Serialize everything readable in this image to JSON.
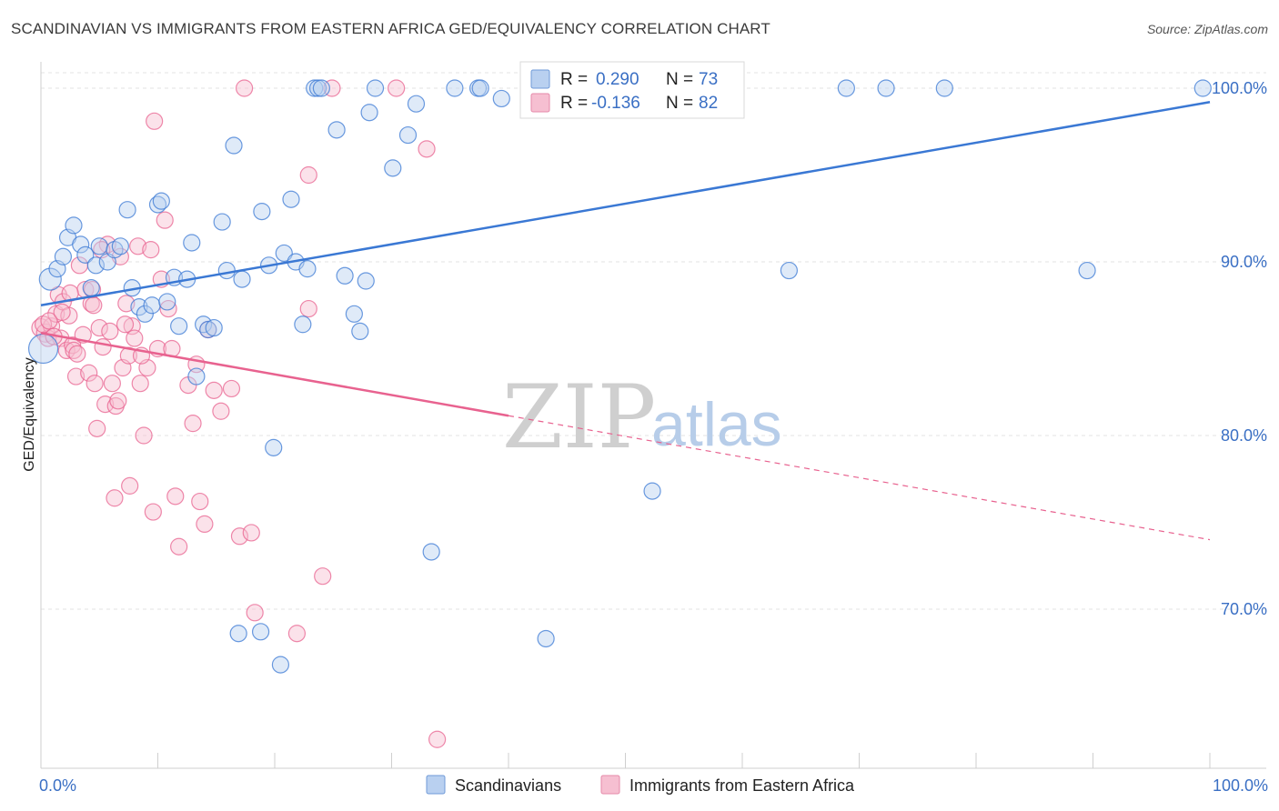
{
  "header": {
    "title": "SCANDINAVIAN VS IMMIGRANTS FROM EASTERN AFRICA GED/EQUIVALENCY CORRELATION CHART",
    "source": "Source: ZipAtlas.com"
  },
  "watermark": {
    "zip": "ZIP",
    "atlas": "atlas"
  },
  "colors": {
    "blue": "#3a78d4",
    "blue_fill": "#b9d0f0",
    "pink": "#e8628f",
    "pink_fill": "#f6bfd1",
    "tick_text": "#3a6fc4",
    "grid": "#e3e3e3"
  },
  "legend": {
    "rows": [
      {
        "r_label": "R = ",
        "r_value": "0.290",
        "n_label": "N = ",
        "n_value": "73"
      },
      {
        "r_label": "R = ",
        "r_value": "-0.136",
        "n_label": "N = ",
        "n_value": "82"
      }
    ]
  },
  "bottom_legend": {
    "items": [
      {
        "label": "Scandinavians"
      },
      {
        "label": "Immigrants from Eastern Africa"
      }
    ]
  },
  "chart_data": {
    "type": "scatter",
    "title": "SCANDINAVIAN VS IMMIGRANTS FROM EASTERN AFRICA GED/EQUIVALENCY CORRELATION CHART",
    "xlabel": "",
    "ylabel": "GED/Equivalency",
    "xlim": [
      0,
      100
    ],
    "ylim": [
      60.5,
      101.5
    ],
    "x_tick_labels": [
      "0.0%",
      "100.0%"
    ],
    "y_ticks": [
      {
        "value": 100,
        "label": "100.0%"
      },
      {
        "value": 90,
        "label": "90.0%"
      },
      {
        "value": 80,
        "label": "80.0%"
      },
      {
        "value": 70,
        "label": "70.0%"
      }
    ],
    "grid": true,
    "legend_position": "top-center",
    "series": [
      {
        "name": "Scandinavians",
        "color": "#3a78d4",
        "r": 0.29,
        "n": 73,
        "trend": {
          "x0": 0,
          "y0": 87.5,
          "x1": 100,
          "y1": 99.2,
          "dashed_from": null
        },
        "points": [
          [
            0.2,
            85.0,
            16
          ],
          [
            0.8,
            89.0,
            12
          ],
          [
            1.4,
            89.6,
            9
          ],
          [
            1.9,
            90.3,
            9
          ],
          [
            2.3,
            91.4,
            9
          ],
          [
            2.8,
            92.1,
            9
          ],
          [
            3.4,
            91.0,
            9
          ],
          [
            3.8,
            90.4,
            9
          ],
          [
            4.3,
            88.5,
            9
          ],
          [
            4.7,
            89.8,
            9
          ],
          [
            5.0,
            90.9,
            9
          ],
          [
            5.7,
            90.0,
            9
          ],
          [
            6.3,
            90.7,
            9
          ],
          [
            6.8,
            90.9,
            9
          ],
          [
            7.4,
            93.0,
            9
          ],
          [
            7.8,
            88.5,
            9
          ],
          [
            8.4,
            87.4,
            9
          ],
          [
            8.9,
            87.0,
            9
          ],
          [
            9.5,
            87.5,
            9
          ],
          [
            10.0,
            93.3,
            9
          ],
          [
            10.3,
            93.5,
            9
          ],
          [
            10.8,
            87.7,
            9
          ],
          [
            11.4,
            89.1,
            9
          ],
          [
            11.8,
            86.3,
            9
          ],
          [
            12.5,
            89.0,
            9
          ],
          [
            12.9,
            91.1,
            9
          ],
          [
            13.3,
            83.4,
            9
          ],
          [
            13.9,
            86.4,
            9
          ],
          [
            14.3,
            86.1,
            9
          ],
          [
            14.8,
            86.2,
            9
          ],
          [
            15.5,
            92.3,
            9
          ],
          [
            15.9,
            89.5,
            9
          ],
          [
            16.5,
            96.7,
            9
          ],
          [
            17.2,
            89.0,
            9
          ],
          [
            18.9,
            92.9,
            9
          ],
          [
            19.5,
            89.8,
            9
          ],
          [
            19.9,
            79.3,
            9
          ],
          [
            20.8,
            90.5,
            9
          ],
          [
            21.4,
            93.6,
            9
          ],
          [
            21.8,
            90.0,
            9
          ],
          [
            22.8,
            89.6,
            9
          ],
          [
            22.4,
            86.4,
            9
          ],
          [
            23.4,
            100.0,
            9
          ],
          [
            23.7,
            100.0,
            9
          ],
          [
            24.0,
            100.0,
            9
          ],
          [
            25.3,
            97.6,
            9
          ],
          [
            26.0,
            89.2,
            9
          ],
          [
            26.8,
            87.0,
            9
          ],
          [
            27.3,
            86.0,
            9
          ],
          [
            27.8,
            88.9,
            9
          ],
          [
            28.1,
            98.6,
            9
          ],
          [
            28.6,
            100.0,
            9
          ],
          [
            30.1,
            95.4,
            9
          ],
          [
            31.4,
            97.3,
            9
          ],
          [
            32.1,
            99.1,
            9
          ],
          [
            35.4,
            100.0,
            9
          ],
          [
            37.4,
            100.0,
            9
          ],
          [
            37.6,
            100.0,
            9
          ],
          [
            39.4,
            99.4,
            9
          ],
          [
            42.5,
            100.0,
            9
          ],
          [
            47.8,
            100.0,
            9
          ],
          [
            64.0,
            89.5,
            9
          ],
          [
            68.9,
            100.0,
            9
          ],
          [
            72.3,
            100.0,
            9
          ],
          [
            77.3,
            100.0,
            9
          ],
          [
            89.5,
            89.5,
            9
          ],
          [
            99.4,
            100.0,
            9
          ],
          [
            16.9,
            68.6,
            9
          ],
          [
            18.8,
            68.7,
            9
          ],
          [
            20.5,
            66.8,
            9
          ],
          [
            33.4,
            73.3,
            9
          ],
          [
            43.2,
            68.3,
            9
          ],
          [
            52.3,
            76.8,
            9
          ]
        ]
      },
      {
        "name": "Immigrants from Eastern Africa",
        "color": "#e8628f",
        "r": -0.136,
        "n": 82,
        "trend": {
          "x0": 0,
          "y0": 85.9,
          "x1": 100,
          "y1": 74.0,
          "dashed_from": 40
        },
        "points": [
          [
            0.0,
            86.2,
            10
          ],
          [
            0.4,
            85.9,
            10
          ],
          [
            0.6,
            85.6,
            9
          ],
          [
            0.9,
            86.3,
            9
          ],
          [
            1.3,
            87.0,
            9
          ],
          [
            1.5,
            88.1,
            9
          ],
          [
            1.7,
            85.6,
            9
          ],
          [
            1.9,
            87.7,
            9
          ],
          [
            2.2,
            84.9,
            9
          ],
          [
            2.4,
            86.9,
            9
          ],
          [
            2.7,
            85.2,
            9
          ],
          [
            3.0,
            83.4,
            9
          ],
          [
            3.3,
            89.8,
            9
          ],
          [
            3.6,
            85.8,
            9
          ],
          [
            3.8,
            88.4,
            9
          ],
          [
            4.1,
            83.6,
            9
          ],
          [
            4.3,
            87.6,
            9
          ],
          [
            4.6,
            83.0,
            9
          ],
          [
            4.8,
            80.4,
            9
          ],
          [
            5.0,
            86.2,
            9
          ],
          [
            5.3,
            85.1,
            9
          ],
          [
            5.5,
            81.8,
            9
          ],
          [
            5.7,
            91.0,
            9
          ],
          [
            5.9,
            86.0,
            9
          ],
          [
            6.1,
            83.0,
            9
          ],
          [
            6.4,
            81.7,
            9
          ],
          [
            6.8,
            90.3,
            9
          ],
          [
            7.0,
            83.9,
            9
          ],
          [
            7.3,
            87.6,
            9
          ],
          [
            7.5,
            84.6,
            9
          ],
          [
            7.8,
            86.3,
            9
          ],
          [
            8.0,
            85.6,
            9
          ],
          [
            8.3,
            90.9,
            9
          ],
          [
            8.5,
            83.0,
            9
          ],
          [
            8.8,
            80.0,
            9
          ],
          [
            9.1,
            83.9,
            9
          ],
          [
            9.4,
            90.7,
            9
          ],
          [
            9.7,
            98.1,
            9
          ],
          [
            10.0,
            85.0,
            9
          ],
          [
            10.3,
            89.0,
            9
          ],
          [
            10.6,
            92.4,
            9
          ],
          [
            10.9,
            87.3,
            9
          ],
          [
            11.2,
            85.0,
            9
          ],
          [
            11.5,
            76.5,
            9
          ],
          [
            11.8,
            73.6,
            9
          ],
          [
            13.0,
            80.7,
            9
          ],
          [
            13.3,
            84.1,
            9
          ],
          [
            13.6,
            76.2,
            9
          ],
          [
            14.0,
            74.9,
            9
          ],
          [
            14.3,
            86.1,
            9
          ],
          [
            14.8,
            82.6,
            9
          ],
          [
            15.4,
            81.4,
            9
          ],
          [
            16.3,
            82.7,
            9
          ],
          [
            17.0,
            74.2,
            9
          ],
          [
            17.4,
            100.0,
            9
          ],
          [
            18.0,
            74.4,
            9
          ],
          [
            18.3,
            69.8,
            9
          ],
          [
            21.9,
            68.6,
            9
          ],
          [
            22.9,
            95.0,
            9
          ],
          [
            22.9,
            87.3,
            9
          ],
          [
            24.1,
            71.9,
            9
          ],
          [
            24.9,
            100.0,
            9
          ],
          [
            30.4,
            100.0,
            9
          ],
          [
            33.0,
            96.5,
            9
          ],
          [
            33.9,
            62.5,
            9
          ],
          [
            6.3,
            76.4,
            9
          ],
          [
            7.6,
            77.1,
            9
          ],
          [
            9.6,
            75.6,
            9
          ],
          [
            4.5,
            87.5,
            9
          ],
          [
            2.8,
            84.9,
            9
          ],
          [
            0.2,
            86.4,
            9
          ],
          [
            0.7,
            86.6,
            9
          ],
          [
            1.1,
            85.7,
            9
          ],
          [
            1.8,
            87.1,
            9
          ],
          [
            2.5,
            88.2,
            9
          ],
          [
            3.1,
            84.7,
            9
          ],
          [
            4.4,
            88.4,
            9
          ],
          [
            5.2,
            90.7,
            9
          ],
          [
            6.6,
            82.0,
            9
          ],
          [
            7.2,
            86.4,
            9
          ],
          [
            8.6,
            84.6,
            9
          ],
          [
            12.6,
            82.9,
            9
          ]
        ]
      }
    ]
  }
}
